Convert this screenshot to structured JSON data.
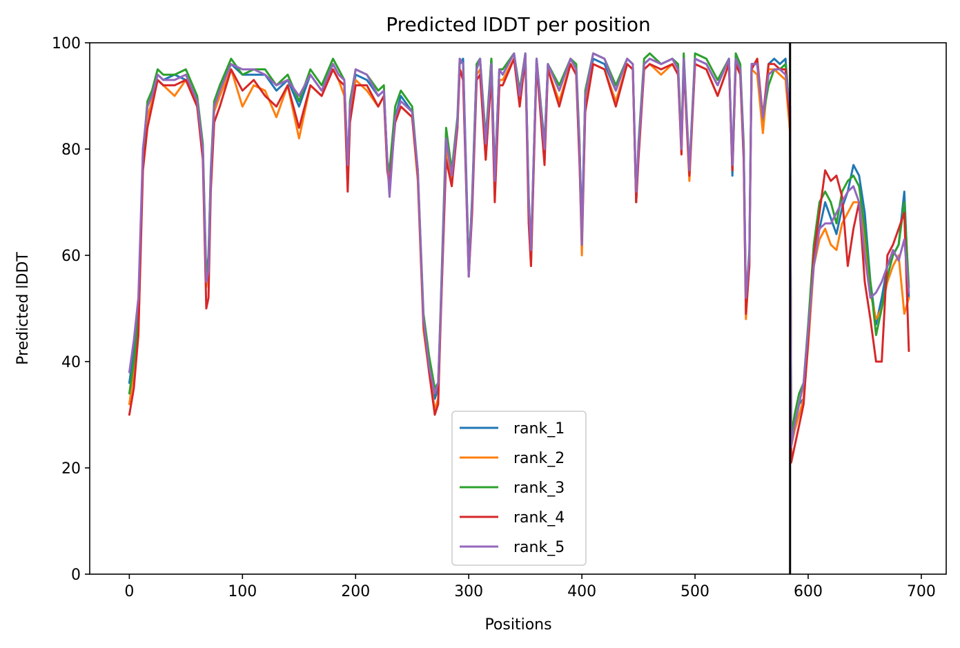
{
  "chart_data": {
    "type": "line",
    "title": "Predicted lDDT per position",
    "xlabel": "Positions",
    "ylabel": "Predicted lDDT",
    "xlim": [
      -35,
      722
    ],
    "ylim": [
      0,
      100
    ],
    "xticks": [
      0,
      100,
      200,
      300,
      400,
      500,
      600,
      700
    ],
    "yticks": [
      0,
      20,
      40,
      60,
      80,
      100
    ],
    "grid": false,
    "legend_position": "lower center",
    "chain_break": 584,
    "series": [
      {
        "name": "rank_1",
        "color": "#1f77b4",
        "x": [
          0,
          4,
          8,
          12,
          16,
          20,
          25,
          30,
          40,
          50,
          60,
          65,
          68,
          70,
          72,
          75,
          80,
          90,
          100,
          110,
          120,
          130,
          140,
          150,
          160,
          170,
          180,
          185,
          190,
          193,
          195,
          200,
          210,
          220,
          225,
          228,
          230,
          235,
          240,
          250,
          255,
          260,
          265,
          270,
          273,
          275,
          280,
          285,
          290,
          292,
          295,
          300,
          303,
          307,
          310,
          315,
          320,
          323,
          327,
          330,
          340,
          345,
          350,
          353,
          355,
          360,
          367,
          370,
          380,
          390,
          395,
          398,
          400,
          403,
          410,
          420,
          430,
          440,
          445,
          448,
          450,
          455,
          460,
          470,
          480,
          485,
          488,
          490,
          495,
          500,
          510,
          520,
          530,
          533,
          536,
          540,
          543,
          545,
          548,
          550,
          555,
          560,
          565,
          570,
          575,
          580,
          584,
          585,
          588,
          592,
          596,
          600,
          605,
          610,
          615,
          620,
          625,
          630,
          635,
          640,
          645,
          650,
          655,
          660,
          665,
          670,
          675,
          680,
          685,
          689
        ],
        "values": [
          36,
          42,
          50,
          78,
          88,
          90,
          94,
          93,
          94,
          93,
          89,
          80,
          55,
          60,
          75,
          88,
          92,
          96,
          94,
          94,
          94,
          91,
          93,
          88,
          94,
          91,
          96,
          94,
          93,
          75,
          88,
          94,
          93,
          90,
          91,
          78,
          75,
          86,
          90,
          87,
          75,
          48,
          40,
          33,
          35,
          48,
          82,
          75,
          85,
          96,
          97,
          58,
          70,
          96,
          97,
          80,
          97,
          75,
          95,
          94,
          98,
          90,
          98,
          70,
          60,
          97,
          80,
          96,
          91,
          97,
          95,
          80,
          65,
          90,
          97,
          96,
          91,
          97,
          96,
          70,
          80,
          96,
          97,
          96,
          97,
          95,
          80,
          97,
          75,
          97,
          96,
          92,
          97,
          75,
          97,
          95,
          80,
          50,
          60,
          96,
          96,
          85,
          96,
          97,
          96,
          97,
          85,
          25,
          28,
          32,
          33,
          45,
          62,
          65,
          70,
          67,
          64,
          69,
          72,
          77,
          75,
          68,
          55,
          47,
          52,
          58,
          60,
          62,
          72,
          52
        ]
      },
      {
        "name": "rank_2",
        "color": "#ff7f0e",
        "x": [
          0,
          4,
          8,
          12,
          16,
          20,
          25,
          30,
          40,
          50,
          60,
          65,
          68,
          70,
          72,
          75,
          80,
          90,
          100,
          110,
          120,
          130,
          140,
          150,
          160,
          170,
          180,
          185,
          190,
          193,
          195,
          200,
          210,
          220,
          225,
          228,
          230,
          235,
          240,
          250,
          255,
          260,
          265,
          270,
          273,
          275,
          280,
          285,
          290,
          292,
          295,
          300,
          303,
          307,
          310,
          315,
          320,
          323,
          327,
          330,
          340,
          345,
          350,
          353,
          355,
          360,
          367,
          370,
          380,
          390,
          395,
          398,
          400,
          403,
          410,
          420,
          430,
          440,
          445,
          448,
          450,
          455,
          460,
          470,
          480,
          485,
          488,
          490,
          495,
          500,
          510,
          520,
          530,
          533,
          536,
          540,
          543,
          545,
          548,
          550,
          555,
          560,
          565,
          570,
          575,
          580,
          584,
          585,
          588,
          592,
          596,
          600,
          605,
          610,
          615,
          620,
          625,
          630,
          635,
          640,
          645,
          650,
          655,
          660,
          665,
          670,
          675,
          680,
          685,
          689
        ],
        "values": [
          32,
          38,
          45,
          80,
          86,
          89,
          93,
          92,
          90,
          93,
          88,
          79,
          54,
          58,
          74,
          87,
          90,
          95,
          88,
          92,
          91,
          86,
          92,
          82,
          92,
          90,
          95,
          93,
          90,
          73,
          87,
          93,
          91,
          88,
          90,
          76,
          74,
          85,
          88,
          86,
          74,
          46,
          38,
          31,
          33,
          46,
          80,
          74,
          84,
          95,
          94,
          56,
          69,
          94,
          95,
          78,
          95,
          71,
          93,
          93,
          97,
          89,
          97,
          68,
          58,
          96,
          78,
          95,
          89,
          96,
          94,
          78,
          60,
          88,
          96,
          95,
          89,
          96,
          95,
          71,
          79,
          95,
          96,
          94,
          96,
          94,
          79,
          96,
          74,
          96,
          95,
          90,
          96,
          76,
          96,
          94,
          78,
          48,
          59,
          95,
          94,
          83,
          95,
          95,
          94,
          93,
          83,
          24,
          27,
          30,
          33,
          43,
          58,
          63,
          65,
          62,
          61,
          66,
          68,
          70,
          70,
          63,
          53,
          48,
          50,
          55,
          58,
          60,
          49,
          52
        ]
      },
      {
        "name": "rank_3",
        "color": "#2ca02c",
        "x": [
          0,
          4,
          8,
          12,
          16,
          20,
          25,
          30,
          40,
          50,
          60,
          65,
          68,
          70,
          72,
          75,
          80,
          90,
          100,
          110,
          120,
          130,
          140,
          150,
          160,
          170,
          180,
          185,
          190,
          193,
          195,
          200,
          210,
          220,
          225,
          228,
          230,
          235,
          240,
          250,
          255,
          260,
          265,
          270,
          273,
          275,
          280,
          285,
          290,
          292,
          295,
          300,
          303,
          307,
          310,
          315,
          320,
          323,
          327,
          330,
          340,
          345,
          350,
          353,
          355,
          360,
          367,
          370,
          380,
          390,
          395,
          398,
          400,
          403,
          410,
          420,
          430,
          440,
          445,
          448,
          450,
          455,
          460,
          470,
          480,
          485,
          488,
          490,
          495,
          500,
          510,
          520,
          530,
          533,
          536,
          540,
          543,
          545,
          548,
          550,
          555,
          560,
          565,
          570,
          575,
          580,
          584,
          585,
          588,
          592,
          596,
          600,
          605,
          610,
          615,
          620,
          625,
          630,
          635,
          640,
          645,
          650,
          655,
          660,
          665,
          670,
          675,
          680,
          685,
          689
        ],
        "values": [
          34,
          40,
          48,
          79,
          89,
          91,
          95,
          94,
          94,
          95,
          90,
          81,
          56,
          59,
          76,
          89,
          92,
          97,
          94,
          95,
          95,
          92,
          94,
          89,
          95,
          92,
          97,
          95,
          93,
          76,
          89,
          95,
          94,
          91,
          92,
          77,
          76,
          88,
          91,
          88,
          76,
          49,
          41,
          35,
          36,
          49,
          84,
          76,
          86,
          97,
          96,
          57,
          71,
          96,
          97,
          82,
          97,
          74,
          95,
          95,
          98,
          91,
          98,
          71,
          61,
          97,
          81,
          96,
          92,
          97,
          96,
          81,
          62,
          91,
          98,
          97,
          92,
          97,
          96,
          70,
          81,
          97,
          98,
          96,
          97,
          96,
          81,
          98,
          76,
          98,
          97,
          93,
          97,
          77,
          98,
          96,
          81,
          51,
          61,
          96,
          96,
          86,
          92,
          95,
          95,
          96,
          86,
          26,
          30,
          34,
          36,
          47,
          62,
          70,
          72,
          70,
          66,
          72,
          74,
          75,
          73,
          65,
          55,
          45,
          50,
          56,
          60,
          62,
          70,
          54
        ]
      },
      {
        "name": "rank_4",
        "color": "#d62728",
        "x": [
          0,
          4,
          8,
          12,
          16,
          20,
          25,
          30,
          40,
          50,
          60,
          65,
          68,
          70,
          72,
          75,
          80,
          90,
          100,
          110,
          120,
          130,
          140,
          150,
          160,
          170,
          180,
          185,
          190,
          193,
          195,
          200,
          210,
          220,
          225,
          228,
          230,
          235,
          240,
          250,
          255,
          260,
          265,
          270,
          273,
          275,
          280,
          285,
          290,
          292,
          295,
          300,
          303,
          307,
          310,
          315,
          320,
          323,
          327,
          330,
          340,
          345,
          350,
          353,
          355,
          360,
          367,
          370,
          380,
          390,
          395,
          398,
          400,
          403,
          410,
          420,
          430,
          440,
          445,
          448,
          450,
          455,
          460,
          470,
          480,
          485,
          488,
          490,
          495,
          500,
          510,
          520,
          530,
          533,
          536,
          540,
          543,
          545,
          548,
          550,
          555,
          560,
          565,
          570,
          575,
          580,
          584,
          585,
          588,
          592,
          596,
          600,
          605,
          610,
          615,
          620,
          625,
          630,
          635,
          640,
          645,
          650,
          655,
          660,
          665,
          670,
          675,
          680,
          685,
          689
        ],
        "values": [
          30,
          35,
          45,
          76,
          84,
          88,
          93,
          92,
          92,
          93,
          88,
          78,
          50,
          52,
          72,
          85,
          88,
          95,
          91,
          93,
          90,
          88,
          92,
          84,
          92,
          90,
          95,
          93,
          92,
          72,
          85,
          92,
          92,
          88,
          90,
          76,
          73,
          85,
          88,
          86,
          75,
          47,
          38,
          30,
          32,
          47,
          78,
          73,
          84,
          95,
          93,
          56,
          68,
          93,
          94,
          78,
          94,
          70,
          92,
          92,
          97,
          88,
          97,
          66,
          58,
          96,
          77,
          95,
          88,
          96,
          94,
          77,
          62,
          87,
          96,
          95,
          88,
          96,
          95,
          70,
          78,
          95,
          96,
          95,
          96,
          94,
          79,
          96,
          75,
          96,
          95,
          90,
          96,
          76,
          96,
          94,
          78,
          49,
          58,
          95,
          97,
          86,
          96,
          96,
          95,
          95,
          85,
          21,
          24,
          28,
          32,
          44,
          60,
          68,
          76,
          74,
          75,
          71,
          58,
          65,
          70,
          55,
          48,
          40,
          40,
          60,
          62,
          65,
          68,
          42
        ]
      },
      {
        "name": "rank_5",
        "color": "#9467bd",
        "x": [
          0,
          4,
          8,
          12,
          16,
          20,
          25,
          30,
          40,
          50,
          60,
          65,
          68,
          70,
          72,
          75,
          80,
          90,
          100,
          110,
          120,
          130,
          140,
          150,
          160,
          170,
          180,
          185,
          190,
          193,
          195,
          200,
          210,
          220,
          225,
          228,
          230,
          235,
          240,
          250,
          255,
          260,
          265,
          270,
          273,
          275,
          280,
          285,
          290,
          292,
          295,
          300,
          303,
          307,
          310,
          315,
          320,
          323,
          327,
          330,
          340,
          345,
          350,
          353,
          355,
          360,
          367,
          370,
          380,
          390,
          395,
          398,
          400,
          403,
          410,
          420,
          430,
          440,
          445,
          448,
          450,
          455,
          460,
          470,
          480,
          485,
          488,
          490,
          495,
          500,
          510,
          520,
          530,
          533,
          536,
          540,
          543,
          545,
          548,
          550,
          555,
          560,
          565,
          570,
          575,
          580,
          584,
          585,
          588,
          592,
          596,
          600,
          605,
          610,
          615,
          620,
          625,
          630,
          635,
          640,
          645,
          650,
          655,
          660,
          665,
          670,
          675,
          680,
          685,
          689
        ],
        "values": [
          38,
          44,
          52,
          80,
          88,
          90,
          94,
          93,
          93,
          94,
          89,
          80,
          55,
          57,
          75,
          88,
          91,
          96,
          95,
          95,
          94,
          92,
          93,
          90,
          94,
          91,
          96,
          94,
          93,
          77,
          88,
          95,
          94,
          90,
          91,
          78,
          71,
          86,
          89,
          87,
          76,
          48,
          39,
          34,
          36,
          48,
          82,
          75,
          85,
          97,
          96,
          56,
          70,
          95,
          97,
          81,
          96,
          74,
          95,
          94,
          98,
          90,
          98,
          70,
          61,
          97,
          80,
          96,
          91,
          97,
          95,
          80,
          62,
          90,
          98,
          97,
          91,
          97,
          96,
          72,
          80,
          96,
          97,
          96,
          97,
          95,
          80,
          97,
          76,
          97,
          96,
          92,
          97,
          77,
          97,
          95,
          80,
          52,
          60,
          96,
          96,
          86,
          94,
          95,
          95,
          94,
          88,
          24,
          28,
          32,
          36,
          46,
          58,
          65,
          66,
          66,
          68,
          70,
          72,
          73,
          70,
          60,
          52,
          53,
          55,
          58,
          61,
          59,
          63,
          53
        ]
      }
    ]
  }
}
